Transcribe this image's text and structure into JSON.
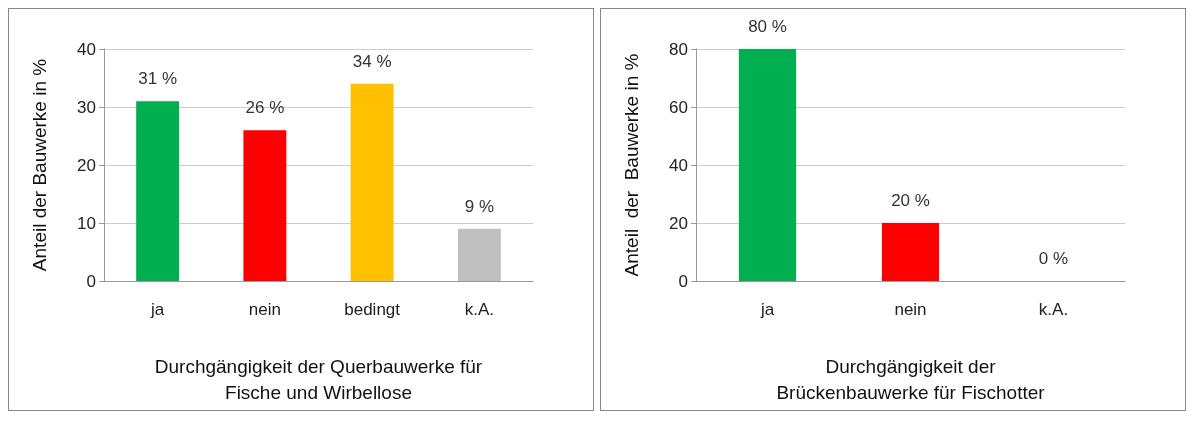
{
  "chart_data": [
    {
      "type": "bar",
      "categories": [
        "ja",
        "nein",
        "bedingt",
        "k.A."
      ],
      "values": [
        31,
        26,
        34,
        9
      ],
      "colors": [
        "#00b050",
        "#ff0000",
        "#ffc000",
        "#c0c0c0"
      ],
      "value_labels": [
        "31 %",
        "26 %",
        "34 %",
        "9 %"
      ],
      "ylim": [
        0,
        40
      ],
      "yticks": [
        0,
        10,
        20,
        30,
        40
      ],
      "grid": "y",
      "xlabel": "Durchgängigkeit der Querbauwerke für\nFische und Wirbellose",
      "ylabel": "Anteil der Bauwerke in %"
    },
    {
      "type": "bar",
      "categories": [
        "ja",
        "nein",
        "k.A."
      ],
      "values": [
        80,
        20,
        0
      ],
      "colors": [
        "#00b050",
        "#ff0000",
        "#a0a0a0"
      ],
      "value_labels": [
        "80 %",
        "20 %",
        "0 %"
      ],
      "ylim": [
        0,
        80
      ],
      "yticks": [
        0,
        20,
        40,
        60,
        80
      ],
      "grid": "y",
      "xlabel": "Durchgängigkeit der\nBrückenbauwerke für Fischotter",
      "ylabel": "Anteil  der  Bauwerke in %"
    }
  ]
}
